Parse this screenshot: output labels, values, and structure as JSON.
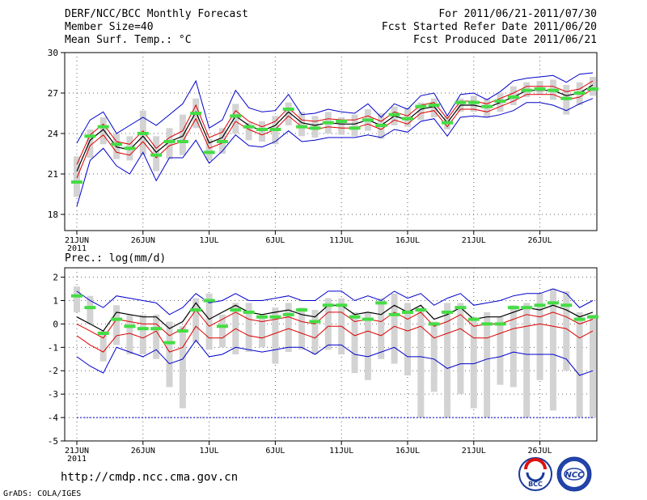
{
  "header": {
    "title": "DERF/NCC/BCC Monthly Forecast",
    "member_size": "Member Size=40",
    "variable": "Mean Surf. Temp.: °C",
    "period": "For 2011/06/21-2011/07/30",
    "started": "Fcst Started Refer Date 2011/06/20",
    "produced": "Fcst Produced Date 2011/06/21"
  },
  "footer": {
    "url": "http://cmdp.ncc.cma.gov.cn",
    "grads": "GrADS: COLA/IGES",
    "logo_bcc": "BCC",
    "logo_ncc": "NCC"
  },
  "colors": {
    "box": "#d3d3d3",
    "median": "#44dd44",
    "mean": "#000000",
    "inner": "#dd0000",
    "outer": "#0000cc"
  },
  "chart_data": [
    {
      "type": "line",
      "title": "Mean Surf. Temp.: °C",
      "xlabel": "",
      "ylabel": "",
      "x_tick_labels": [
        "21JUN",
        "26JUN",
        "1JUL",
        "6JUL",
        "11JUL",
        "16JUL",
        "21JUL",
        "26JUL"
      ],
      "x_year_label": "2011",
      "ylim": [
        16.8,
        30
      ],
      "y_ticks": [
        18,
        21,
        24,
        27,
        30
      ],
      "x_days": 40,
      "grid": true,
      "series": [
        {
          "name": "mean",
          "values": [
            21.2,
            23.5,
            24.3,
            23.0,
            22.8,
            23.8,
            22.6,
            23.4,
            23.8,
            25.6,
            23.3,
            23.7,
            25.3,
            24.6,
            24.2,
            24.6,
            25.6,
            24.8,
            24.6,
            24.8,
            24.7,
            24.7,
            25.0,
            24.6,
            25.3,
            25.0,
            25.8,
            26.0,
            24.8,
            26.1,
            26.1,
            25.9,
            26.3,
            26.7,
            27.2,
            27.2,
            27.2,
            26.8,
            27.0,
            27.6
          ]
        },
        {
          "name": "upper_inner",
          "values": [
            21.7,
            23.9,
            24.7,
            23.4,
            23.2,
            24.2,
            22.9,
            23.7,
            24.2,
            26.1,
            23.7,
            24.1,
            25.7,
            24.9,
            24.5,
            24.9,
            25.9,
            25.0,
            24.9,
            25.1,
            25.0,
            25.0,
            25.3,
            24.9,
            25.6,
            25.3,
            26.1,
            26.3,
            25.1,
            26.4,
            26.4,
            26.2,
            26.6,
            27.0,
            27.5,
            27.5,
            27.5,
            27.1,
            27.3,
            27.9
          ]
        },
        {
          "name": "lower_inner",
          "values": [
            20.7,
            23.1,
            23.9,
            22.6,
            22.4,
            23.4,
            22.2,
            23.1,
            23.4,
            25.1,
            22.9,
            23.3,
            24.9,
            24.3,
            23.9,
            24.3,
            25.3,
            24.5,
            24.3,
            24.5,
            24.4,
            24.4,
            24.7,
            24.3,
            25.0,
            24.7,
            25.5,
            25.7,
            24.5,
            25.8,
            25.8,
            25.6,
            26.0,
            26.4,
            26.9,
            26.9,
            26.9,
            26.5,
            26.7,
            27.3
          ]
        },
        {
          "name": "upper_outer",
          "values": [
            23.3,
            25.0,
            25.6,
            24.0,
            24.6,
            25.2,
            24.6,
            25.4,
            26.2,
            27.9,
            24.4,
            25.0,
            27.2,
            25.9,
            25.6,
            25.7,
            26.9,
            25.4,
            25.5,
            25.8,
            25.6,
            25.5,
            26.2,
            25.2,
            26.2,
            25.8,
            26.8,
            27.0,
            25.3,
            26.9,
            27.0,
            26.5,
            27.1,
            27.9,
            28.1,
            28.2,
            28.3,
            27.8,
            28.4,
            28.5
          ]
        },
        {
          "name": "lower_outer",
          "values": [
            18.6,
            22.0,
            22.9,
            21.6,
            21.0,
            22.6,
            20.5,
            22.2,
            22.2,
            23.5,
            21.8,
            22.7,
            23.9,
            23.1,
            23.0,
            23.4,
            24.2,
            23.4,
            23.5,
            23.7,
            23.7,
            23.7,
            23.9,
            23.7,
            24.3,
            24.1,
            24.9,
            25.1,
            23.8,
            25.2,
            25.3,
            25.2,
            25.4,
            25.7,
            26.3,
            26.3,
            26.1,
            25.7,
            26.2,
            26.6
          ]
        }
      ],
      "box_min": [
        19.3,
        22.2,
        23.2,
        22.1,
        22.0,
        22.4,
        21.2,
        22.1,
        22.4,
        24.4,
        22.0,
        22.5,
        24.0,
        23.5,
        23.4,
        23.2,
        24.6,
        23.8,
        23.7,
        24.0,
        23.9,
        23.8,
        24.2,
        23.6,
        24.6,
        24.5,
        25.0,
        25.2,
        24.3,
        25.6,
        25.6,
        25.2,
        25.6,
        26.1,
        26.7,
        26.9,
        26.5,
        25.4,
        26.1,
        26.8
      ],
      "box_max": [
        22.3,
        24.3,
        25.2,
        24.0,
        23.8,
        25.7,
        23.8,
        24.4,
        25.4,
        26.6,
        23.6,
        24.4,
        26.2,
        24.8,
        24.9,
        25.3,
        26.3,
        25.6,
        25.3,
        25.6,
        25.2,
        25.4,
        25.8,
        25.5,
        26.0,
        25.9,
        26.3,
        26.6,
        25.3,
        26.6,
        26.8,
        26.6,
        27.0,
        27.5,
        27.8,
        27.9,
        28.0,
        27.6,
        27.8,
        28.2
      ],
      "median": [
        20.4,
        23.8,
        24.5,
        23.2,
        22.9,
        24.0,
        22.4,
        23.4,
        23.4,
        25.5,
        22.6,
        23.4,
        25.3,
        24.5,
        24.3,
        24.3,
        25.8,
        24.5,
        24.4,
        24.8,
        24.9,
        24.4,
        25.0,
        24.6,
        25.4,
        25.1,
        26.0,
        26.1,
        24.8,
        26.3,
        26.3,
        26.0,
        26.4,
        26.7,
        27.2,
        27.3,
        27.2,
        26.6,
        27.0,
        27.3
      ]
    },
    {
      "type": "line",
      "title": "Prec.: log(mm/d)",
      "xlabel": "",
      "ylabel": "",
      "x_tick_labels": [
        "21JUN",
        "26JUN",
        "1JUL",
        "6JUL",
        "11JUL",
        "16JUL",
        "21JUL",
        "26JUL"
      ],
      "x_year_label": "2011",
      "ylim": [
        -5,
        2.4
      ],
      "y_ticks": [
        -5,
        -4,
        -3,
        -2,
        -1,
        0,
        1,
        2
      ],
      "x_days": 40,
      "grid": true,
      "dashed_floor": -4,
      "series": [
        {
          "name": "mean",
          "values": [
            0.3,
            0.0,
            -0.3,
            0.5,
            0.4,
            0.3,
            0.3,
            -0.2,
            0.1,
            0.9,
            0.2,
            0.5,
            0.8,
            0.5,
            0.4,
            0.5,
            0.6,
            0.4,
            0.3,
            0.8,
            0.8,
            0.4,
            0.5,
            0.4,
            0.8,
            0.5,
            0.8,
            0.2,
            0.4,
            0.7,
            0.2,
            0.3,
            0.3,
            0.5,
            0.7,
            0.6,
            0.8,
            0.6,
            0.3,
            0.5
          ]
        },
        {
          "name": "upper_inner",
          "values": [
            0.0,
            -0.3,
            -0.6,
            0.2,
            0.1,
            0.0,
            0.0,
            -0.5,
            -0.2,
            0.6,
            -0.1,
            0.2,
            0.5,
            0.2,
            0.1,
            0.2,
            0.3,
            0.1,
            0.0,
            0.5,
            0.5,
            0.1,
            0.2,
            0.1,
            0.5,
            0.2,
            0.5,
            -0.1,
            0.1,
            0.4,
            -0.1,
            0.0,
            0.0,
            0.2,
            0.4,
            0.3,
            0.5,
            0.3,
            0.0,
            0.2
          ]
        },
        {
          "name": "lower_inner",
          "values": [
            -0.5,
            -0.9,
            -1.2,
            -0.5,
            -0.4,
            -0.6,
            -0.3,
            -1.2,
            -1.0,
            -0.1,
            -0.6,
            -0.6,
            -0.2,
            -0.5,
            -0.6,
            -0.4,
            -0.2,
            -0.4,
            -0.6,
            -0.1,
            -0.1,
            -0.5,
            -0.3,
            -0.5,
            -0.1,
            -0.3,
            -0.1,
            -0.6,
            -0.4,
            -0.2,
            -0.6,
            -0.6,
            -0.4,
            -0.2,
            -0.1,
            0.0,
            -0.1,
            -0.2,
            -0.6,
            -0.3
          ]
        },
        {
          "name": "upper_outer",
          "values": [
            1.4,
            1.0,
            0.7,
            1.2,
            1.1,
            1.0,
            0.9,
            0.4,
            0.7,
            1.3,
            0.9,
            1.0,
            1.3,
            1.0,
            1.0,
            1.1,
            1.2,
            1.0,
            1.0,
            1.4,
            1.4,
            1.0,
            1.2,
            1.0,
            1.4,
            1.1,
            1.3,
            0.8,
            1.1,
            1.3,
            0.8,
            0.9,
            1.0,
            1.2,
            1.3,
            1.3,
            1.5,
            1.3,
            0.7,
            1.0
          ]
        },
        {
          "name": "lower_outer",
          "values": [
            -1.4,
            -1.8,
            -2.1,
            -1.0,
            -1.2,
            -1.4,
            -1.1,
            -1.7,
            -1.5,
            -0.7,
            -1.4,
            -1.3,
            -1.0,
            -1.1,
            -1.2,
            -1.1,
            -1.0,
            -1.0,
            -1.3,
            -0.9,
            -0.9,
            -1.3,
            -1.4,
            -1.2,
            -1.0,
            -1.4,
            -1.4,
            -1.5,
            -1.9,
            -1.7,
            -1.7,
            -1.5,
            -1.4,
            -1.2,
            -1.3,
            -1.3,
            -1.3,
            -1.5,
            -2.2,
            -2.0
          ]
        },
        {
          "name": "floor",
          "values": [
            -4,
            -4,
            -4,
            -4,
            -4,
            -4,
            -4,
            -4,
            -4,
            -4,
            -4,
            -4,
            -4,
            -4,
            -4,
            -4,
            -4,
            -4,
            -4,
            -4,
            -4,
            -4,
            -4,
            -4,
            -4,
            -4,
            -4,
            -4,
            -4,
            -4,
            -4,
            -4,
            -4,
            -4,
            -4,
            -4,
            -4,
            -4,
            -4,
            -4
          ]
        }
      ],
      "box_min": [
        0.5,
        0.0,
        -1.6,
        -0.9,
        -1.3,
        -1.3,
        -1.5,
        -2.7,
        -3.6,
        -0.8,
        -1.1,
        -1.0,
        -1.3,
        -1.2,
        -1.0,
        -1.7,
        -1.2,
        -1.1,
        -1.3,
        -1.1,
        -1.3,
        -2.1,
        -2.4,
        -1.5,
        -1.7,
        -2.2,
        -4.0,
        -2.9,
        -4.0,
        -3.0,
        -3.6,
        -4.0,
        -2.6,
        -2.7,
        -4.0,
        -2.4,
        -3.7,
        -2.0,
        -4.0,
        -4.0
      ],
      "box_max": [
        1.6,
        1.2,
        -0.3,
        0.8,
        0.4,
        0.4,
        0.4,
        0.1,
        -0.1,
        1.1,
        1.3,
        0.4,
        0.9,
        0.9,
        0.4,
        0.7,
        0.9,
        0.7,
        0.6,
        1.1,
        1.1,
        0.5,
        0.5,
        1.1,
        1.3,
        0.9,
        0.7,
        0.1,
        0.9,
        0.9,
        0.3,
        0.5,
        0.3,
        0.8,
        0.9,
        1.3,
        1.5,
        1.4,
        0.5,
        0.4
      ],
      "median": [
        1.2,
        0.7,
        -0.4,
        0.2,
        -0.1,
        -0.2,
        -0.2,
        -0.8,
        -0.3,
        0.6,
        1.0,
        -0.1,
        0.6,
        0.5,
        0.3,
        0.3,
        0.4,
        0.6,
        0.1,
        0.8,
        0.8,
        0.3,
        0.2,
        0.9,
        0.4,
        0.5,
        0.6,
        0.0,
        0.5,
        0.7,
        0.2,
        0.0,
        0.0,
        0.7,
        0.7,
        0.8,
        0.9,
        0.8,
        0.2,
        0.3
      ]
    }
  ]
}
